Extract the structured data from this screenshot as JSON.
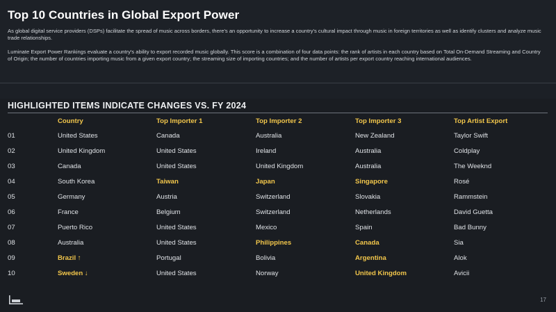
{
  "header": {
    "title": "Top 10 Countries in Global Export Power",
    "paragraph1": "As global digital service providers (DSPs) facilitate the spread of music across borders, there's an opportunity to increase a country's cultural impact through music in foreign territories as well as identify clusters and analyze music trade relationships.",
    "paragraph2": "Luminate Export Power Rankings evaluate a country's ability to export recorded music globally. This score is a combination of four data points: the rank of artists in each country based on Total On-Demand Streaming and Country of Origin; the number of countries importing music from a given export country; the streaming size of importing countries; and the number of artists per export country reaching international audiences."
  },
  "section": {
    "title": "HIGHLIGHTED ITEMS INDICATE CHANGES VS. FY 2024"
  },
  "table": {
    "rank_header": "",
    "columns": [
      "Country",
      "Top Importer 1",
      "Top Importer 2",
      "Top Importer 3",
      "Top Artist Export"
    ],
    "rows": [
      {
        "rank": "01",
        "cells": [
          "United States",
          "Canada",
          "Australia",
          "New Zealand",
          "Taylor Swift"
        ],
        "highlight": [
          false,
          false,
          false,
          false,
          false
        ]
      },
      {
        "rank": "02",
        "cells": [
          "United Kingdom",
          "United States",
          "Ireland",
          "Australia",
          "Coldplay"
        ],
        "highlight": [
          false,
          false,
          false,
          false,
          false
        ]
      },
      {
        "rank": "03",
        "cells": [
          "Canada",
          "United States",
          "United Kingdom",
          "Australia",
          "The Weeknd"
        ],
        "highlight": [
          false,
          false,
          false,
          false,
          false
        ]
      },
      {
        "rank": "04",
        "cells": [
          "South Korea",
          "Taiwan",
          "Japan",
          "Singapore",
          "Rosé"
        ],
        "highlight": [
          false,
          true,
          true,
          true,
          false
        ]
      },
      {
        "rank": "05",
        "cells": [
          "Germany",
          "Austria",
          "Switzerland",
          "Slovakia",
          "Rammstein"
        ],
        "highlight": [
          false,
          false,
          false,
          false,
          false
        ]
      },
      {
        "rank": "06",
        "cells": [
          "France",
          "Belgium",
          "Switzerland",
          "Netherlands",
          "David Guetta"
        ],
        "highlight": [
          false,
          false,
          false,
          false,
          false
        ]
      },
      {
        "rank": "07",
        "cells": [
          "Puerto Rico",
          "United States",
          "Mexico",
          "Spain",
          "Bad Bunny"
        ],
        "highlight": [
          false,
          false,
          false,
          false,
          false
        ]
      },
      {
        "rank": "08",
        "cells": [
          "Australia",
          "United States",
          "Philippines",
          "Canada",
          "Sia"
        ],
        "highlight": [
          false,
          false,
          true,
          true,
          false
        ]
      },
      {
        "rank": "09",
        "cells": [
          "Brazil ↑",
          "Portugal",
          "Bolivia",
          "Argentina",
          "Alok"
        ],
        "highlight": [
          true,
          false,
          false,
          true,
          false
        ]
      },
      {
        "rank": "10",
        "cells": [
          "Sweden ↓",
          "United States",
          "Norway",
          "United Kingdom",
          "Avicii"
        ],
        "highlight": [
          true,
          false,
          false,
          true,
          false
        ]
      }
    ]
  },
  "footer": {
    "logo_icon": "luminate-logo-icon",
    "page_number": "17"
  },
  "colors": {
    "background": "#1a1d22",
    "highlight": "#f2c64b",
    "text": "#dfe2e6"
  }
}
